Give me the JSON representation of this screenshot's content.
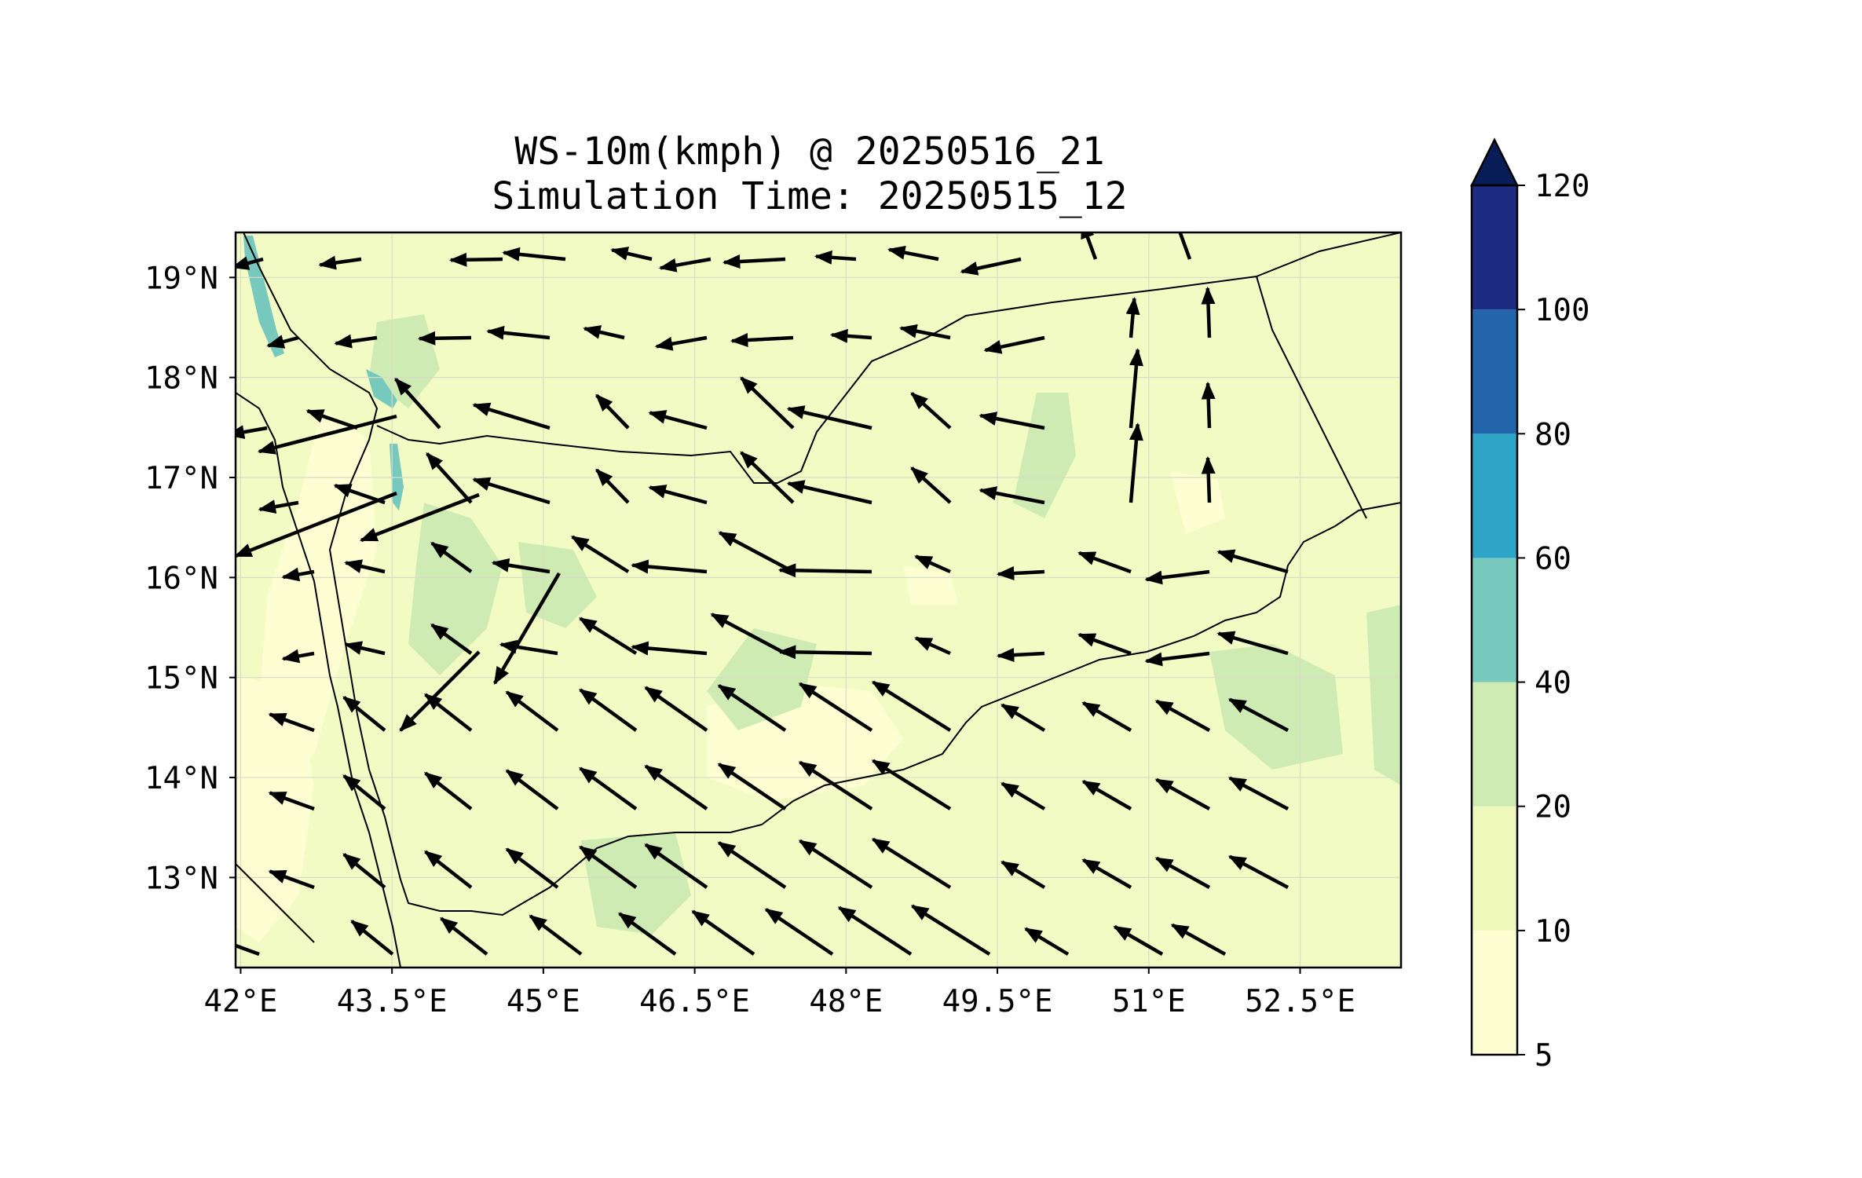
{
  "title": {
    "line1": "WS-10m(kmph) @ 20250516_21",
    "line2": "Simulation Time: 20250515_12"
  },
  "map": {
    "lon_range": [
      41.95,
      53.5
    ],
    "lat_range": [
      12.1,
      19.45
    ],
    "x_ticks": [
      {
        "value": 42.0,
        "label": "42°E"
      },
      {
        "value": 43.5,
        "label": "43.5°E"
      },
      {
        "value": 45.0,
        "label": "45°E"
      },
      {
        "value": 46.5,
        "label": "46.5°E"
      },
      {
        "value": 48.0,
        "label": "48°E"
      },
      {
        "value": 49.5,
        "label": "49.5°E"
      },
      {
        "value": 51.0,
        "label": "51°E"
      },
      {
        "value": 52.5,
        "label": "52.5°E"
      }
    ],
    "y_ticks": [
      {
        "value": 19,
        "label": "19°N"
      },
      {
        "value": 18,
        "label": "18°N"
      },
      {
        "value": 17,
        "label": "17°N"
      },
      {
        "value": 16,
        "label": "16°N"
      },
      {
        "value": 15,
        "label": "15°N"
      },
      {
        "value": 14,
        "label": "14°N"
      },
      {
        "value": 13,
        "label": "13°N"
      }
    ],
    "gridlines": true,
    "colors": {
      "background": "#f3fbc4",
      "grid": "#d8dcc6",
      "boundary": "#000000",
      "arrow": "#000000"
    }
  },
  "colorbar": {
    "levels": [
      {
        "value": 5,
        "label": "5",
        "color": "#fdfed2"
      },
      {
        "value": 10,
        "label": "10",
        "color": "#eef8bb"
      },
      {
        "value": 20,
        "label": "20",
        "color": "#cfebb4"
      },
      {
        "value": 40,
        "label": "40",
        "color": "#77c8bd"
      },
      {
        "value": 60,
        "label": "60",
        "color": "#2ea4c6"
      },
      {
        "value": 80,
        "label": "80",
        "color": "#2265ab"
      },
      {
        "value": 100,
        "label": "100",
        "color": "#1d2b81"
      },
      {
        "value": 120,
        "label": "120",
        "color": "#081d58"
      }
    ],
    "extend": "max"
  }
}
